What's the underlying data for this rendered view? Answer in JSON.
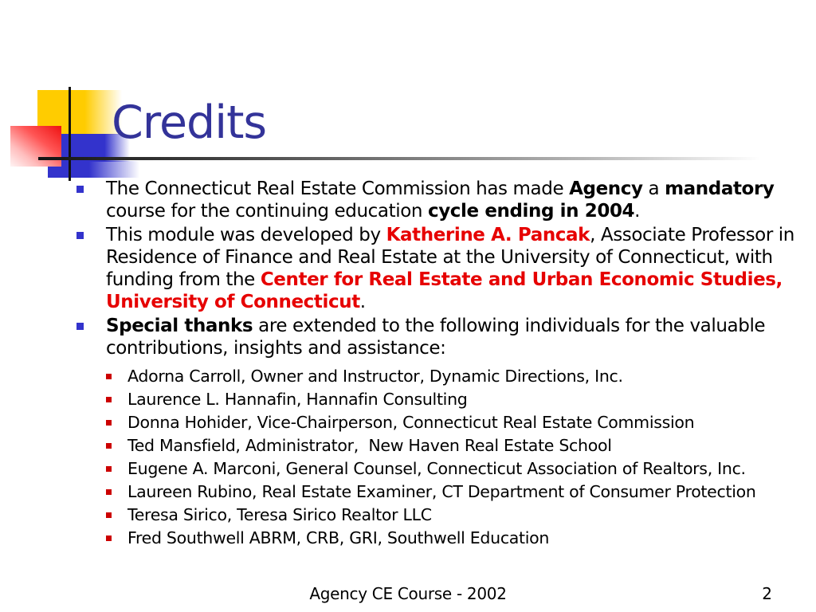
{
  "slide": {
    "title": "Credits",
    "colors": {
      "title_blue": "#333399",
      "accent_red": "#E60000",
      "bullet_blue": "#3333CC",
      "bullet_red": "#CC0000",
      "deco_yellow": "#FFCC00",
      "deco_blue": "#3333CC",
      "line_black": "#111111"
    },
    "bullets": [
      {
        "level": 1,
        "segments": [
          {
            "t": "The Connecticut Real Estate Commission has made "
          },
          {
            "t": "Agency",
            "b": true
          },
          {
            "t": " a "
          },
          {
            "t": "mandatory",
            "b": true
          },
          {
            "t": " course for the continuing education "
          },
          {
            "t": "cycle ending in 2004",
            "b": true
          },
          {
            "t": "."
          }
        ]
      },
      {
        "level": 1,
        "segments": [
          {
            "t": "This module was developed by "
          },
          {
            "t": "Katherine A. Pancak",
            "b": true,
            "c": "red"
          },
          {
            "t": ", Associate Professor in Residence of Finance and Real Estate at the University of Connecticut, with funding from the "
          },
          {
            "t": "Center for Real Estate and Urban Economic Studies, University of Connecticut",
            "b": true,
            "c": "red"
          },
          {
            "t": "."
          }
        ]
      },
      {
        "level": 1,
        "segments": [
          {
            "t": "Special thanks",
            "b": true
          },
          {
            "t": " are extended to the following individuals for the valuable contributions, insights and assistance:"
          }
        ]
      },
      {
        "level": 2,
        "segments": [
          {
            "t": "Adorna Carroll, Owner and Instructor, Dynamic Directions, Inc."
          }
        ]
      },
      {
        "level": 2,
        "segments": [
          {
            "t": "Laurence L. Hannafin, Hannafin Consulting"
          }
        ]
      },
      {
        "level": 2,
        "segments": [
          {
            "t": "Donna Hohider, Vice-Chairperson, Connecticut Real Estate Commission"
          }
        ]
      },
      {
        "level": 2,
        "segments": [
          {
            "t": "Ted Mansfield, Administrator,  New Haven Real Estate School"
          }
        ]
      },
      {
        "level": 2,
        "segments": [
          {
            "t": "Eugene A. Marconi, General Counsel, Connecticut Association of Realtors, Inc."
          }
        ]
      },
      {
        "level": 2,
        "segments": [
          {
            "t": "Laureen Rubino, Real Estate Examiner, CT Department of Consumer Protection"
          }
        ]
      },
      {
        "level": 2,
        "segments": [
          {
            "t": "Teresa Sirico, Teresa Sirico Realtor LLC"
          }
        ]
      },
      {
        "level": 2,
        "segments": [
          {
            "t": "Fred Southwell ABRM, CRB, GRI, Southwell Education"
          }
        ]
      }
    ],
    "footer": {
      "text": "Agency CE Course - 2002",
      "page_number": "2"
    }
  }
}
